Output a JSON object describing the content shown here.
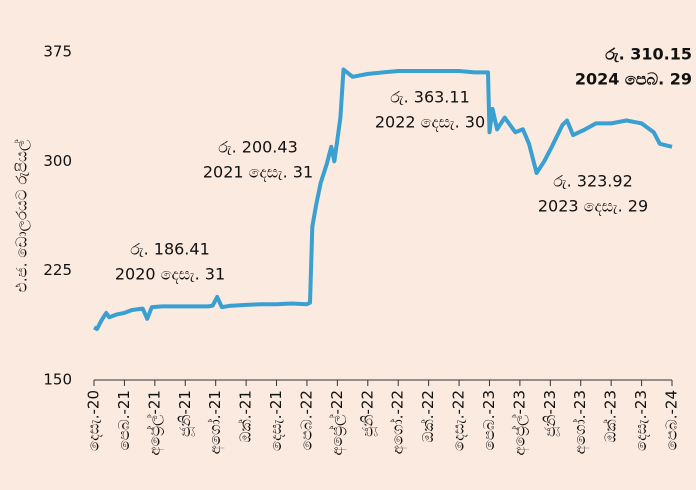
{
  "chart_data": {
    "type": "line",
    "y_label": "එ.ජ. ඩොලරයට රුපියල්",
    "ylim": [
      150,
      375
    ],
    "yticks": [
      150,
      225,
      300,
      375
    ],
    "xlim": [
      0,
      38
    ],
    "xticks": [
      {
        "value": 0,
        "label": "දෙසැ.-20"
      },
      {
        "value": 2,
        "label": "පෙබ.-21"
      },
      {
        "value": 4,
        "label": "අප්‍රේල්-21"
      },
      {
        "value": 6,
        "label": "ජූනි-21"
      },
      {
        "value": 8,
        "label": "අගෝ.-21"
      },
      {
        "value": 10,
        "label": "ඔක්.-21"
      },
      {
        "value": 12,
        "label": "දෙසැ.-21"
      },
      {
        "value": 14,
        "label": "පෙබ.-22"
      },
      {
        "value": 16,
        "label": "අප්‍රේල්-22"
      },
      {
        "value": 18,
        "label": "ජූනි-22"
      },
      {
        "value": 20,
        "label": "අගෝ.-22"
      },
      {
        "value": 22,
        "label": "ඔක්.-22"
      },
      {
        "value": 24,
        "label": "දෙසැ.-22"
      },
      {
        "value": 26,
        "label": "පෙබ.-23"
      },
      {
        "value": 28,
        "label": "අප්‍රේල්-23"
      },
      {
        "value": 30,
        "label": "ජූනි-23"
      },
      {
        "value": 32,
        "label": "අගෝ.-23"
      },
      {
        "value": 34,
        "label": "ඔක්.-23"
      },
      {
        "value": 36,
        "label": "දෙසැ.-23"
      },
      {
        "value": 38,
        "label": "පෙබ.-24"
      }
    ],
    "series": [
      {
        "color": "#3a9fd1",
        "x": [
          0,
          0.2,
          0.5,
          0.8,
          1,
          1.5,
          2,
          2.5,
          3.2,
          3.5,
          3.8,
          4.5,
          6,
          7.5,
          7.8,
          8.1,
          8.4,
          9,
          10,
          11,
          12,
          13,
          14,
          14.2,
          14.35,
          14.6,
          14.9,
          15.3,
          15.6,
          15.8,
          16.0,
          16.2,
          16.4,
          17,
          18,
          19,
          20,
          21,
          22,
          23,
          24,
          25,
          25.9,
          26.0,
          26.2,
          26.5,
          27,
          27.7,
          28.2,
          28.6,
          29.1,
          29.6,
          30.1,
          30.8,
          31.1,
          31.5,
          32.3,
          33,
          34,
          35,
          36,
          36.8,
          37.2,
          38
        ],
        "values": [
          186,
          185,
          191,
          196,
          193,
          195,
          196,
          198,
          199,
          192,
          200,
          200.5,
          200.5,
          200.5,
          201,
          207,
          200,
          201,
          201.5,
          202,
          202,
          202.5,
          202,
          203,
          255,
          270,
          285,
          298,
          310,
          300,
          315,
          330,
          363,
          358,
          360,
          361,
          362,
          362,
          362,
          362,
          362,
          361,
          361,
          320,
          336,
          322,
          330,
          320,
          322,
          312,
          292,
          300,
          310,
          325,
          328,
          318,
          322,
          326,
          326,
          328,
          326,
          320,
          312,
          310
        ]
      }
    ],
    "annotations": [
      {
        "lines": [
          "රු. 186.41",
          "2020 දෙසැ. 31"
        ]
      },
      {
        "lines": [
          "රු. 200.43",
          "2021 දෙසැ. 31"
        ]
      },
      {
        "lines": [
          "රු. 363.11",
          "2022 දෙසැ. 30"
        ]
      },
      {
        "lines": [
          "රු. 323.92",
          "2023 දෙසැ. 29"
        ]
      },
      {
        "lines": [
          "රු. 310.15",
          "2024 පෙබ.  29"
        ]
      }
    ]
  }
}
